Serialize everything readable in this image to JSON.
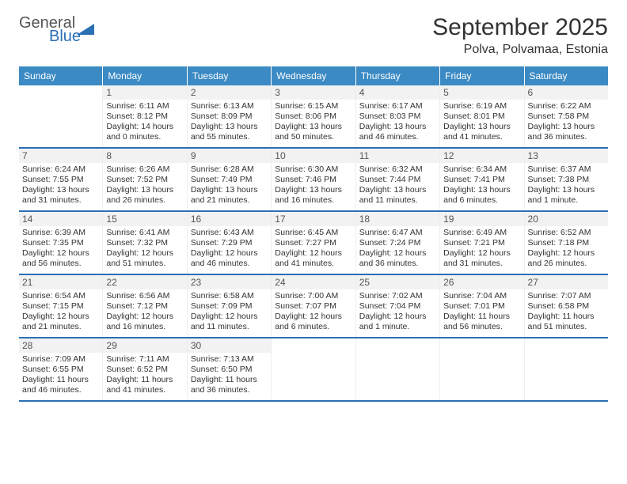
{
  "brand": {
    "word1": "General",
    "word2": "Blue",
    "accent": "#2b6fb5"
  },
  "title": "September 2025",
  "subtitle": "Polva, Polvamaa, Estonia",
  "colors": {
    "header_bg": "#3b8ac4",
    "header_text": "#ffffff",
    "rule": "#2b6fb5",
    "shade": "#f2f2f2",
    "text": "#333333"
  },
  "day_headers": [
    "Sunday",
    "Monday",
    "Tuesday",
    "Wednesday",
    "Thursday",
    "Friday",
    "Saturday"
  ],
  "weeks": [
    [
      {
        "n": "",
        "sr": "",
        "ss": "",
        "dl": ""
      },
      {
        "n": "1",
        "sr": "Sunrise: 6:11 AM",
        "ss": "Sunset: 8:12 PM",
        "dl": "Daylight: 14 hours and 0 minutes."
      },
      {
        "n": "2",
        "sr": "Sunrise: 6:13 AM",
        "ss": "Sunset: 8:09 PM",
        "dl": "Daylight: 13 hours and 55 minutes."
      },
      {
        "n": "3",
        "sr": "Sunrise: 6:15 AM",
        "ss": "Sunset: 8:06 PM",
        "dl": "Daylight: 13 hours and 50 minutes."
      },
      {
        "n": "4",
        "sr": "Sunrise: 6:17 AM",
        "ss": "Sunset: 8:03 PM",
        "dl": "Daylight: 13 hours and 46 minutes."
      },
      {
        "n": "5",
        "sr": "Sunrise: 6:19 AM",
        "ss": "Sunset: 8:01 PM",
        "dl": "Daylight: 13 hours and 41 minutes."
      },
      {
        "n": "6",
        "sr": "Sunrise: 6:22 AM",
        "ss": "Sunset: 7:58 PM",
        "dl": "Daylight: 13 hours and 36 minutes."
      }
    ],
    [
      {
        "n": "7",
        "sr": "Sunrise: 6:24 AM",
        "ss": "Sunset: 7:55 PM",
        "dl": "Daylight: 13 hours and 31 minutes."
      },
      {
        "n": "8",
        "sr": "Sunrise: 6:26 AM",
        "ss": "Sunset: 7:52 PM",
        "dl": "Daylight: 13 hours and 26 minutes."
      },
      {
        "n": "9",
        "sr": "Sunrise: 6:28 AM",
        "ss": "Sunset: 7:49 PM",
        "dl": "Daylight: 13 hours and 21 minutes."
      },
      {
        "n": "10",
        "sr": "Sunrise: 6:30 AM",
        "ss": "Sunset: 7:46 PM",
        "dl": "Daylight: 13 hours and 16 minutes."
      },
      {
        "n": "11",
        "sr": "Sunrise: 6:32 AM",
        "ss": "Sunset: 7:44 PM",
        "dl": "Daylight: 13 hours and 11 minutes."
      },
      {
        "n": "12",
        "sr": "Sunrise: 6:34 AM",
        "ss": "Sunset: 7:41 PM",
        "dl": "Daylight: 13 hours and 6 minutes."
      },
      {
        "n": "13",
        "sr": "Sunrise: 6:37 AM",
        "ss": "Sunset: 7:38 PM",
        "dl": "Daylight: 13 hours and 1 minute."
      }
    ],
    [
      {
        "n": "14",
        "sr": "Sunrise: 6:39 AM",
        "ss": "Sunset: 7:35 PM",
        "dl": "Daylight: 12 hours and 56 minutes."
      },
      {
        "n": "15",
        "sr": "Sunrise: 6:41 AM",
        "ss": "Sunset: 7:32 PM",
        "dl": "Daylight: 12 hours and 51 minutes."
      },
      {
        "n": "16",
        "sr": "Sunrise: 6:43 AM",
        "ss": "Sunset: 7:29 PM",
        "dl": "Daylight: 12 hours and 46 minutes."
      },
      {
        "n": "17",
        "sr": "Sunrise: 6:45 AM",
        "ss": "Sunset: 7:27 PM",
        "dl": "Daylight: 12 hours and 41 minutes."
      },
      {
        "n": "18",
        "sr": "Sunrise: 6:47 AM",
        "ss": "Sunset: 7:24 PM",
        "dl": "Daylight: 12 hours and 36 minutes."
      },
      {
        "n": "19",
        "sr": "Sunrise: 6:49 AM",
        "ss": "Sunset: 7:21 PM",
        "dl": "Daylight: 12 hours and 31 minutes."
      },
      {
        "n": "20",
        "sr": "Sunrise: 6:52 AM",
        "ss": "Sunset: 7:18 PM",
        "dl": "Daylight: 12 hours and 26 minutes."
      }
    ],
    [
      {
        "n": "21",
        "sr": "Sunrise: 6:54 AM",
        "ss": "Sunset: 7:15 PM",
        "dl": "Daylight: 12 hours and 21 minutes."
      },
      {
        "n": "22",
        "sr": "Sunrise: 6:56 AM",
        "ss": "Sunset: 7:12 PM",
        "dl": "Daylight: 12 hours and 16 minutes."
      },
      {
        "n": "23",
        "sr": "Sunrise: 6:58 AM",
        "ss": "Sunset: 7:09 PM",
        "dl": "Daylight: 12 hours and 11 minutes."
      },
      {
        "n": "24",
        "sr": "Sunrise: 7:00 AM",
        "ss": "Sunset: 7:07 PM",
        "dl": "Daylight: 12 hours and 6 minutes."
      },
      {
        "n": "25",
        "sr": "Sunrise: 7:02 AM",
        "ss": "Sunset: 7:04 PM",
        "dl": "Daylight: 12 hours and 1 minute."
      },
      {
        "n": "26",
        "sr": "Sunrise: 7:04 AM",
        "ss": "Sunset: 7:01 PM",
        "dl": "Daylight: 11 hours and 56 minutes."
      },
      {
        "n": "27",
        "sr": "Sunrise: 7:07 AM",
        "ss": "Sunset: 6:58 PM",
        "dl": "Daylight: 11 hours and 51 minutes."
      }
    ],
    [
      {
        "n": "28",
        "sr": "Sunrise: 7:09 AM",
        "ss": "Sunset: 6:55 PM",
        "dl": "Daylight: 11 hours and 46 minutes."
      },
      {
        "n": "29",
        "sr": "Sunrise: 7:11 AM",
        "ss": "Sunset: 6:52 PM",
        "dl": "Daylight: 11 hours and 41 minutes."
      },
      {
        "n": "30",
        "sr": "Sunrise: 7:13 AM",
        "ss": "Sunset: 6:50 PM",
        "dl": "Daylight: 11 hours and 36 minutes."
      },
      {
        "n": "",
        "sr": "",
        "ss": "",
        "dl": ""
      },
      {
        "n": "",
        "sr": "",
        "ss": "",
        "dl": ""
      },
      {
        "n": "",
        "sr": "",
        "ss": "",
        "dl": ""
      },
      {
        "n": "",
        "sr": "",
        "ss": "",
        "dl": ""
      }
    ]
  ]
}
